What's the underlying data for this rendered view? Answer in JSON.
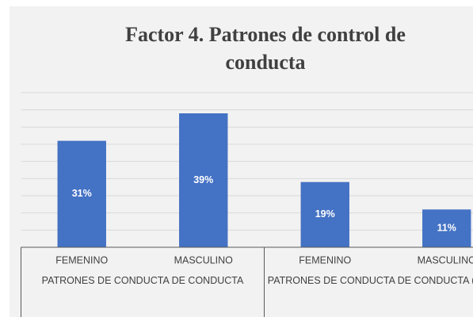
{
  "chart_data": {
    "type": "bar",
    "title": "Factor 4. Patrones de control de conducta",
    "categories": [
      "FEMENINO",
      "MASCULINO",
      "FEMENINO",
      "MASCULINO"
    ],
    "groups": [
      {
        "label": "PATRONES DE CONDUCTA DE CONDUCTA",
        "categories": [
          0,
          1
        ]
      },
      {
        "label": "PATRONES DE CONDUCTA DE CONDUCTA (BAJO)",
        "categories": [
          2,
          3
        ]
      }
    ],
    "values": [
      31,
      39,
      19,
      11
    ],
    "value_labels": [
      "31%",
      "39%",
      "19%",
      "11%"
    ],
    "color": "#4472c4",
    "ylim": [
      0,
      45
    ],
    "yticks": [
      0,
      5,
      10,
      15,
      20,
      25,
      30,
      35,
      40,
      45
    ],
    "grid": true
  }
}
